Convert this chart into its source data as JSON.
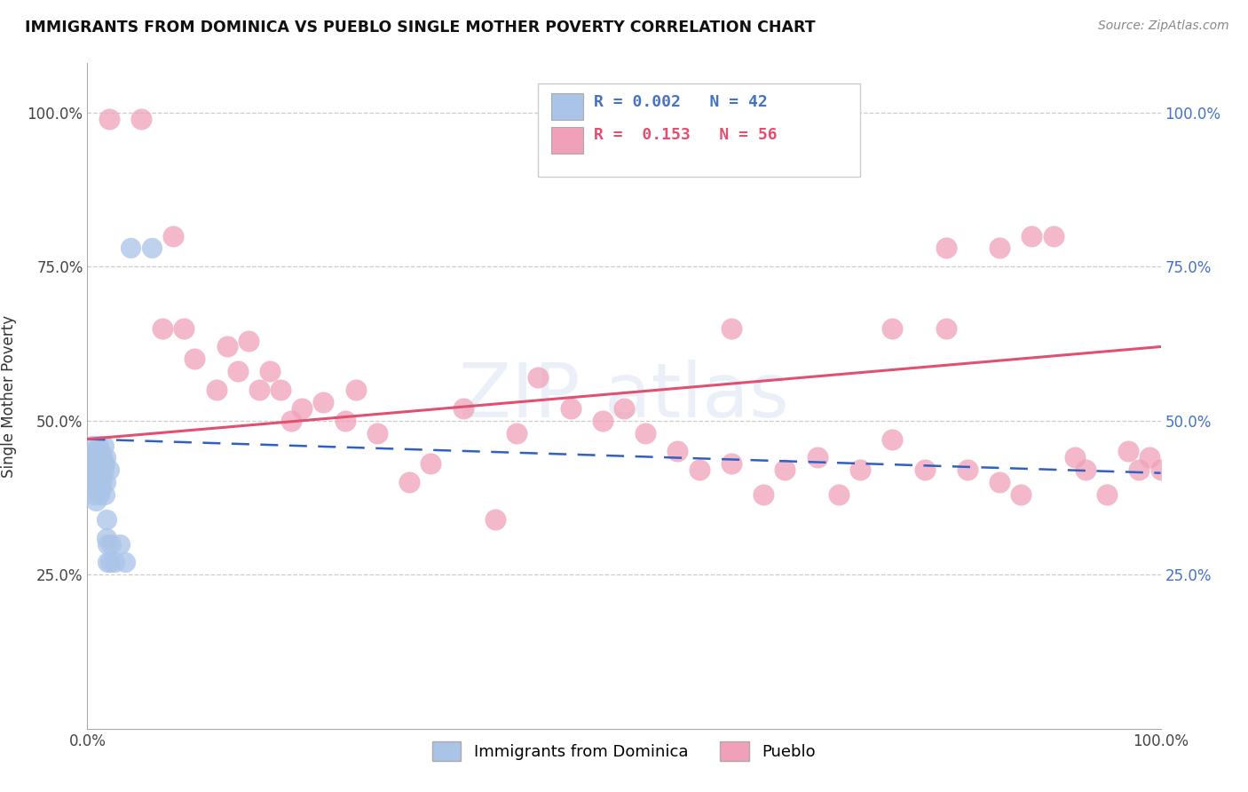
{
  "title": "IMMIGRANTS FROM DOMINICA VS PUEBLO SINGLE MOTHER POVERTY CORRELATION CHART",
  "source": "Source: ZipAtlas.com",
  "ylabel": "Single Mother Poverty",
  "xlim": [
    0.0,
    1.0
  ],
  "ylim": [
    0.0,
    1.08
  ],
  "ytick_positions": [
    0.25,
    0.5,
    0.75,
    1.0
  ],
  "ytick_labels": [
    "25.0%",
    "50.0%",
    "75.0%",
    "100.0%"
  ],
  "xtick_positions": [
    0.0,
    1.0
  ],
  "xtick_labels": [
    "0.0%",
    "100.0%"
  ],
  "grid_color": "#cccccc",
  "background_color": "#ffffff",
  "blue_R": "0.002",
  "blue_N": "42",
  "pink_R": "0.153",
  "pink_N": "56",
  "blue_color": "#aac4e8",
  "pink_color": "#f0a0b8",
  "blue_line_color": "#3060c0",
  "pink_line_color": "#e05070",
  "blue_scatter_x": [
    0.002,
    0.003,
    0.004,
    0.004,
    0.005,
    0.005,
    0.006,
    0.006,
    0.007,
    0.007,
    0.008,
    0.008,
    0.009,
    0.009,
    0.01,
    0.01,
    0.011,
    0.011,
    0.012,
    0.012,
    0.013,
    0.013,
    0.014,
    0.014,
    0.015,
    0.015,
    0.016,
    0.016,
    0.017,
    0.017,
    0.018,
    0.018,
    0.019,
    0.019,
    0.02,
    0.021,
    0.022,
    0.025,
    0.03,
    0.035,
    0.04,
    0.06
  ],
  "blue_scatter_y": [
    0.44,
    0.41,
    0.43,
    0.39,
    0.46,
    0.4,
    0.42,
    0.38,
    0.45,
    0.41,
    0.43,
    0.37,
    0.44,
    0.4,
    0.46,
    0.42,
    0.44,
    0.38,
    0.45,
    0.41,
    0.43,
    0.39,
    0.44,
    0.4,
    0.42,
    0.46,
    0.43,
    0.38,
    0.44,
    0.4,
    0.34,
    0.31,
    0.27,
    0.3,
    0.42,
    0.27,
    0.3,
    0.27,
    0.3,
    0.27,
    0.78,
    0.78
  ],
  "pink_scatter_x": [
    0.02,
    0.05,
    0.07,
    0.08,
    0.09,
    0.1,
    0.12,
    0.13,
    0.14,
    0.15,
    0.16,
    0.17,
    0.18,
    0.19,
    0.2,
    0.22,
    0.24,
    0.25,
    0.27,
    0.3,
    0.32,
    0.35,
    0.38,
    0.4,
    0.42,
    0.45,
    0.48,
    0.5,
    0.52,
    0.55,
    0.57,
    0.6,
    0.63,
    0.65,
    0.68,
    0.7,
    0.72,
    0.75,
    0.78,
    0.8,
    0.82,
    0.85,
    0.87,
    0.88,
    0.9,
    0.92,
    0.93,
    0.95,
    0.97,
    0.98,
    0.99,
    1.0,
    0.6,
    0.75,
    0.8,
    0.85
  ],
  "pink_scatter_y": [
    0.99,
    0.99,
    0.65,
    0.8,
    0.65,
    0.6,
    0.55,
    0.62,
    0.58,
    0.63,
    0.55,
    0.58,
    0.55,
    0.5,
    0.52,
    0.53,
    0.5,
    0.55,
    0.48,
    0.4,
    0.43,
    0.52,
    0.34,
    0.48,
    0.57,
    0.52,
    0.5,
    0.52,
    0.48,
    0.45,
    0.42,
    0.43,
    0.38,
    0.42,
    0.44,
    0.38,
    0.42,
    0.47,
    0.42,
    0.65,
    0.42,
    0.4,
    0.38,
    0.8,
    0.8,
    0.44,
    0.42,
    0.38,
    0.45,
    0.42,
    0.44,
    0.42,
    0.65,
    0.65,
    0.78,
    0.78
  ],
  "legend_labels": [
    "Immigrants from Dominica",
    "Pueblo"
  ],
  "blue_line_y_start": 0.47,
  "blue_line_y_end": 0.415,
  "pink_line_y_start": 0.47,
  "pink_line_y_end": 0.62
}
